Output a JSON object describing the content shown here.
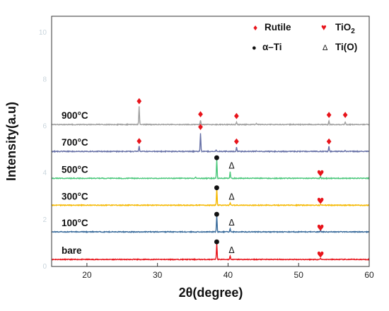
{
  "chart_data": {
    "type": "line",
    "title": "",
    "xlabel": "2θ(degree)",
    "ylabel": "Intensity(a.u)",
    "xlim": [
      15,
      60
    ],
    "xticks": [
      "20",
      "30",
      "40",
      "50",
      "60"
    ],
    "ylim": [
      0,
      10.7
    ],
    "faint_yticks": [
      "0",
      "2",
      "4",
      "6",
      "8",
      "10"
    ],
    "grid": false,
    "legend_position": "top-right",
    "legend": [
      {
        "marker": "♦",
        "label": "Rutile",
        "color": "#e8141b"
      },
      {
        "marker": "♥",
        "label": "TiO",
        "subscript": "2",
        "color": "#e8141b"
      },
      {
        "marker": "●",
        "label": "α–Ti",
        "color": "#111111"
      },
      {
        "marker": "Δ",
        "label": "Ti(O)",
        "color": "#111111"
      }
    ],
    "series": [
      {
        "name": "bare",
        "color": "#e8141b",
        "baseline": 0.3,
        "peaks": [
          {
            "x": 38.4,
            "h": 0.68
          },
          {
            "x": 40.3,
            "h": 0.16
          },
          {
            "x": 53.1,
            "h": 0.05
          }
        ],
        "annotations": [
          {
            "symbol": "●",
            "x": 38.4,
            "y": 1.1
          },
          {
            "symbol": "Δ",
            "x": 40.3,
            "y": 0.7
          },
          {
            "symbol": "♥",
            "x": 53.1,
            "y": 0.5
          }
        ]
      },
      {
        "name": "100°C",
        "color": "#3a6c9c",
        "baseline": 1.48,
        "peaks": [
          {
            "x": 38.4,
            "h": 0.68
          },
          {
            "x": 40.3,
            "h": 0.14
          },
          {
            "x": 53.1,
            "h": 0.06
          }
        ],
        "annotations": [
          {
            "symbol": "●",
            "x": 38.4,
            "y": 2.28
          },
          {
            "symbol": "Δ",
            "x": 40.3,
            "y": 1.88
          },
          {
            "symbol": "♥",
            "x": 53.1,
            "y": 1.65
          }
        ]
      },
      {
        "name": "300°C",
        "color": "#f5b800",
        "baseline": 2.62,
        "peaks": [
          {
            "x": 38.4,
            "h": 0.68
          },
          {
            "x": 40.3,
            "h": 0.1
          },
          {
            "x": 53.1,
            "h": 0.05
          }
        ],
        "annotations": [
          {
            "symbol": "●",
            "x": 38.4,
            "y": 3.42
          },
          {
            "symbol": "Δ",
            "x": 40.3,
            "y": 2.97
          },
          {
            "symbol": "♥",
            "x": 53.1,
            "y": 2.8
          }
        ]
      },
      {
        "name": "500°C",
        "color": "#4cc87c",
        "baseline": 3.77,
        "peaks": [
          {
            "x": 35.4,
            "h": 0.06
          },
          {
            "x": 38.4,
            "h": 0.8
          },
          {
            "x": 40.3,
            "h": 0.28
          },
          {
            "x": 53.1,
            "h": 0.08
          }
        ],
        "annotations": [
          {
            "symbol": "●",
            "x": 38.4,
            "y": 4.7
          },
          {
            "symbol": "Δ",
            "x": 40.3,
            "y": 4.3
          },
          {
            "symbol": "♥",
            "x": 53.1,
            "y": 3.97
          }
        ]
      },
      {
        "name": "700°C",
        "color": "#6670a6",
        "baseline": 4.92,
        "peaks": [
          {
            "x": 27.4,
            "h": 0.23
          },
          {
            "x": 36.1,
            "h": 0.78
          },
          {
            "x": 38.3,
            "h": 0.07
          },
          {
            "x": 41.2,
            "h": 0.18
          },
          {
            "x": 44.0,
            "h": 0.04
          },
          {
            "x": 54.3,
            "h": 0.22
          },
          {
            "x": 56.6,
            "h": 0.04
          }
        ],
        "annotations": [
          {
            "symbol": "♦",
            "x": 27.4,
            "y": 5.35
          },
          {
            "symbol": "♦",
            "x": 36.1,
            "y": 5.95
          },
          {
            "symbol": "♦",
            "x": 41.2,
            "y": 5.33
          },
          {
            "symbol": "♦",
            "x": 54.3,
            "y": 5.33
          }
        ]
      },
      {
        "name": "900°C",
        "color": "#a0a0a0",
        "baseline": 6.07,
        "peaks": [
          {
            "x": 27.4,
            "h": 0.77
          },
          {
            "x": 36.1,
            "h": 0.17
          },
          {
            "x": 41.2,
            "h": 0.1
          },
          {
            "x": 44.0,
            "h": 0.03
          },
          {
            "x": 54.3,
            "h": 0.16
          },
          {
            "x": 56.6,
            "h": 0.12
          }
        ],
        "annotations": [
          {
            "symbol": "♦",
            "x": 27.4,
            "y": 7.06
          },
          {
            "symbol": "♦",
            "x": 36.1,
            "y": 6.5
          },
          {
            "symbol": "♦",
            "x": 41.2,
            "y": 6.42
          },
          {
            "symbol": "♦",
            "x": 54.3,
            "y": 6.47
          },
          {
            "symbol": "♦",
            "x": 56.6,
            "y": 6.47
          }
        ]
      }
    ]
  },
  "symbol_colors": {
    "♦": "#e8141b",
    "♥": "#e8141b",
    "●": "#111111",
    "Δ": "#111111"
  }
}
